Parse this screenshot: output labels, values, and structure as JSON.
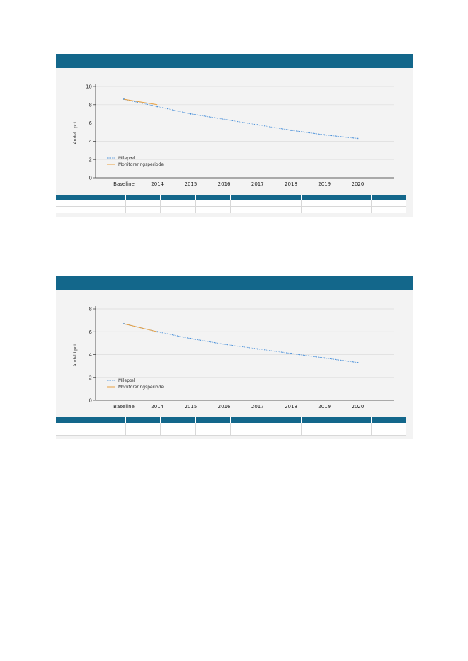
{
  "colors": {
    "header": "#13678b",
    "panel_bg": "#f3f3f3",
    "milepael": "#4a90d9",
    "monitorering": "#e8a040",
    "footer_line": "#c8102e"
  },
  "chart_data": [
    {
      "type": "line",
      "categories": [
        "Baseline",
        "2014",
        "2015",
        "2016",
        "2017",
        "2018",
        "2019",
        "2020"
      ],
      "ylabel": "Andel i pct.",
      "xlabel": "",
      "ylim": [
        0,
        10
      ],
      "yticks": [
        0,
        2,
        4,
        6,
        8,
        10
      ],
      "grid": true,
      "legend_position": "bottom-left",
      "series": [
        {
          "name": "Milepæl",
          "style": "dotted",
          "color": "#4a90d9",
          "values": [
            8.6,
            7.8,
            7.0,
            6.4,
            5.8,
            5.2,
            4.7,
            4.3
          ]
        },
        {
          "name": "Monitoreringsperiode",
          "style": "solid",
          "color": "#e8a040",
          "values": [
            8.6,
            8.0,
            null,
            null,
            null,
            null,
            null,
            null
          ]
        }
      ]
    },
    {
      "type": "line",
      "categories": [
        "Baseline",
        "2014",
        "2015",
        "2016",
        "2017",
        "2018",
        "2019",
        "2020"
      ],
      "ylabel": "Andel i pct.",
      "xlabel": "",
      "ylim": [
        0,
        8
      ],
      "yticks": [
        0,
        2,
        4,
        6,
        8
      ],
      "grid": true,
      "legend_position": "bottom-left",
      "series": [
        {
          "name": "Milepæl",
          "style": "dotted",
          "color": "#4a90d9",
          "values": [
            6.7,
            6.0,
            5.4,
            4.9,
            4.5,
            4.1,
            3.7,
            3.3
          ]
        },
        {
          "name": "Monitoreringsperiode",
          "style": "solid",
          "color": "#e8a040",
          "values": [
            6.7,
            6.0,
            null,
            null,
            null,
            null,
            null,
            null
          ]
        }
      ]
    }
  ]
}
